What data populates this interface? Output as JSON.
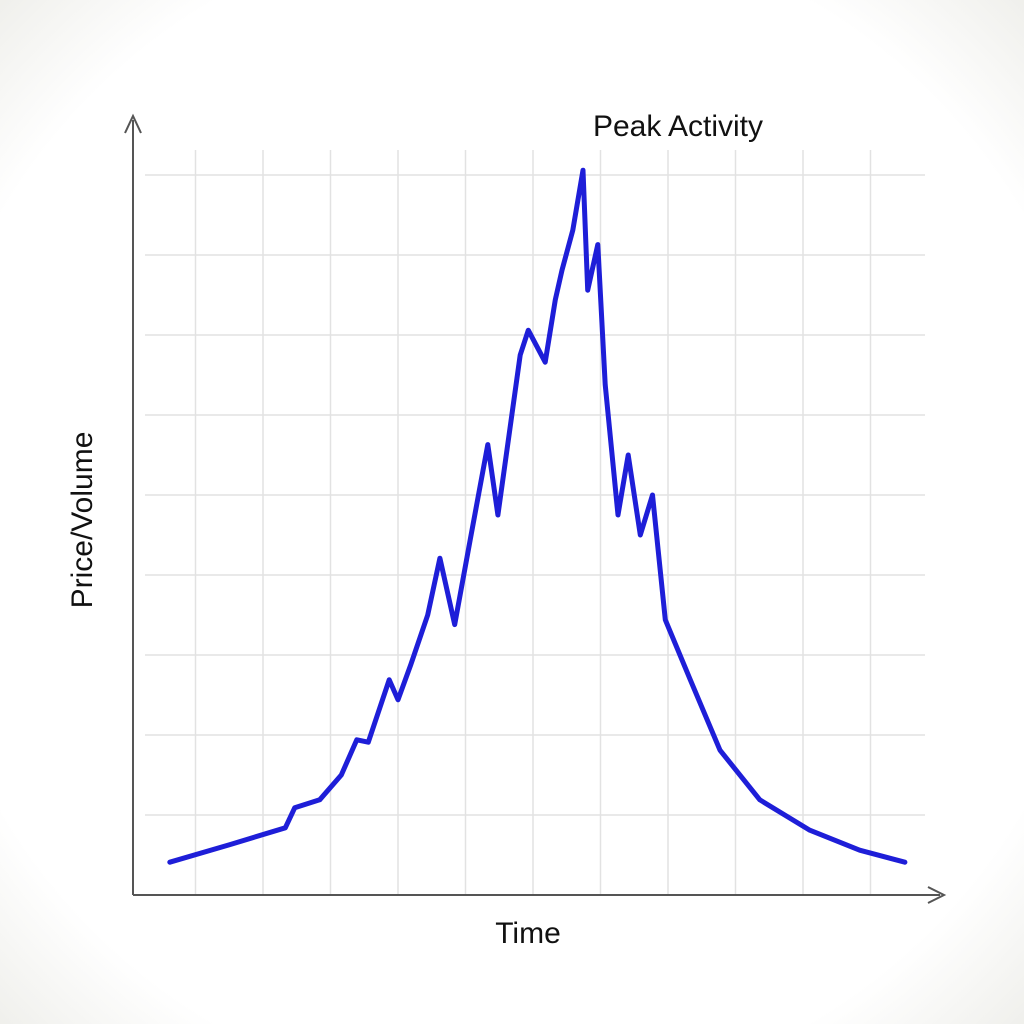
{
  "chart_data": {
    "type": "line",
    "annotation": "Peak Activity",
    "x_label": "Time",
    "y_label": "Price/Volume",
    "x": [
      0.62,
      1.51,
      2.33,
      2.47,
      2.84,
      3.16,
      3.39,
      3.56,
      3.87,
      4.0,
      4.19,
      4.44,
      4.62,
      4.84,
      5.07,
      5.33,
      5.48,
      5.81,
      5.93,
      6.18,
      6.33,
      6.43,
      6.59,
      6.74,
      6.81,
      6.96,
      7.07,
      7.26,
      7.41,
      7.59,
      7.77,
      7.96,
      8.33,
      8.77,
      9.36,
      10.1,
      10.84,
      11.51
    ],
    "values": [
      0.41,
      0.63,
      0.84,
      1.09,
      1.19,
      1.5,
      1.94,
      1.91,
      2.69,
      2.44,
      2.88,
      3.5,
      4.21,
      3.38,
      4.44,
      5.63,
      4.75,
      6.75,
      7.06,
      6.66,
      7.44,
      7.81,
      8.31,
      9.06,
      7.56,
      8.13,
      6.38,
      4.75,
      5.5,
      4.5,
      5.0,
      3.44,
      2.69,
      1.81,
      1.19,
      0.81,
      0.56,
      0.41
    ],
    "color": "#1e1ed8",
    "xlim": [
      0,
      12
    ],
    "ylim": [
      0,
      10
    ],
    "xticks": [
      1,
      2,
      3,
      4,
      5,
      6,
      7,
      8,
      9,
      10,
      11
    ],
    "yticks": [
      1,
      2,
      3,
      4,
      5,
      6,
      7,
      8,
      9
    ],
    "grid": true
  }
}
